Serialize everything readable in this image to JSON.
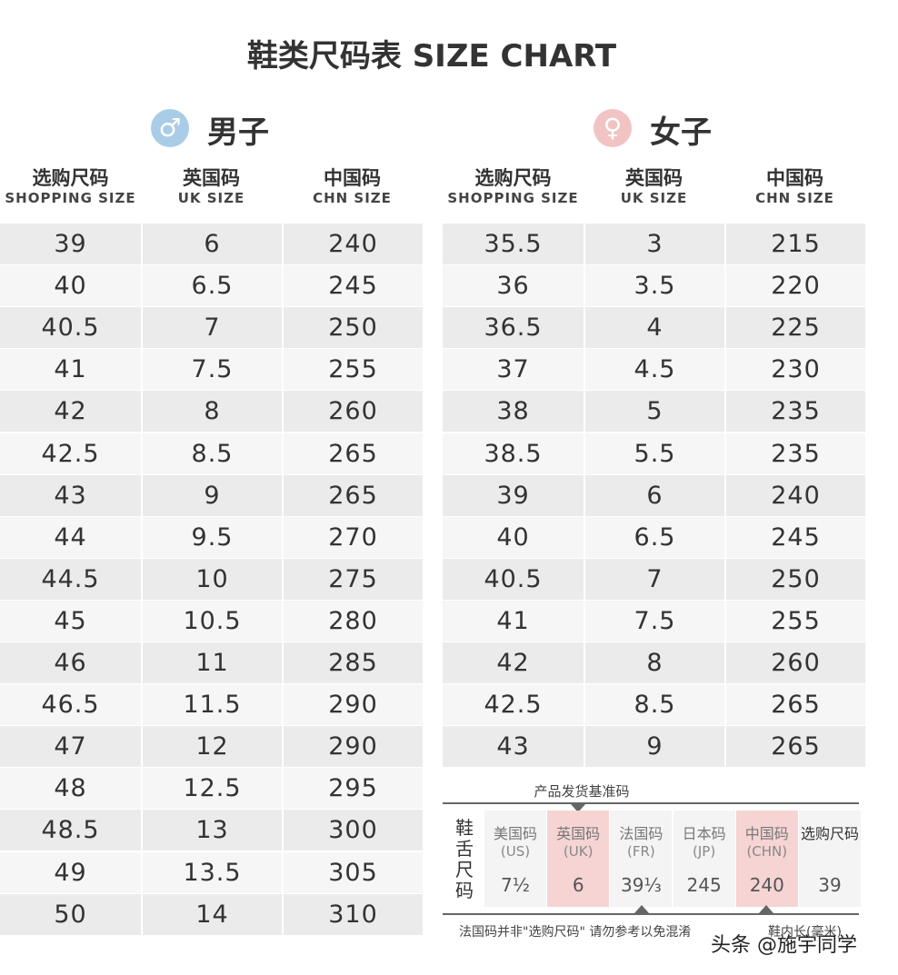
{
  "title": "鞋类尺码表 SIZE CHART",
  "men": {
    "icon": "♂",
    "label": "男子",
    "headers": [
      {
        "zh": "选购尺码",
        "en": "SHOPPING SIZE"
      },
      {
        "zh": "英国码",
        "en": "UK SIZE"
      },
      {
        "zh": "中国码",
        "en": "CHN SIZE"
      }
    ],
    "rows": [
      [
        39,
        6,
        240
      ],
      [
        40,
        6.5,
        245
      ],
      [
        40.5,
        7,
        250
      ],
      [
        41,
        7.5,
        255
      ],
      [
        42,
        8,
        260
      ],
      [
        42.5,
        8.5,
        265
      ],
      [
        43,
        9,
        265
      ],
      [
        44,
        9.5,
        270
      ],
      [
        44.5,
        10,
        275
      ],
      [
        45,
        10.5,
        280
      ],
      [
        46,
        11,
        285
      ],
      [
        46.5,
        11.5,
        290
      ],
      [
        47,
        12,
        290
      ],
      [
        48,
        12.5,
        295
      ],
      [
        48.5,
        13,
        300
      ],
      [
        49,
        13.5,
        305
      ],
      [
        50,
        14,
        310
      ]
    ]
  },
  "women": {
    "icon": "♀",
    "label": "女子",
    "headers": [
      {
        "zh": "选购尺码",
        "en": "SHOPPING SIZE"
      },
      {
        "zh": "英国码",
        "en": "UK SIZE"
      },
      {
        "zh": "中国码",
        "en": "CHN SIZE"
      }
    ],
    "rows": [
      [
        35.5,
        3,
        215
      ],
      [
        36,
        3.5,
        220
      ],
      [
        36.5,
        4,
        225
      ],
      [
        37,
        4.5,
        230
      ],
      [
        38,
        5,
        235
      ],
      [
        38.5,
        5.5,
        235
      ],
      [
        39,
        6,
        240
      ],
      [
        40,
        6.5,
        245
      ],
      [
        40.5,
        7,
        250
      ],
      [
        41,
        7.5,
        255
      ],
      [
        42,
        8,
        260
      ],
      [
        42.5,
        8.5,
        265
      ],
      [
        43,
        9,
        265
      ]
    ]
  },
  "reference": {
    "caption": "产品发货基准码",
    "side_label": "鞋舌尺码",
    "columns": [
      {
        "name": "美国码",
        "sub": "(US)",
        "value": "7½"
      },
      {
        "name": "英国码",
        "sub": "(UK)",
        "value": 6
      },
      {
        "name": "法国码",
        "sub": "(FR)",
        "value": "39⅓"
      },
      {
        "name": "日本码",
        "sub": "(JP)",
        "value": 245
      },
      {
        "name": "中国码",
        "sub": "(CHN)",
        "value": 240
      },
      {
        "name": "选购尺码",
        "value": 39
      }
    ],
    "note": "法国码并非\"选购尺码\" 请勿参考以免混淆",
    "note2": "鞋内长(毫米)"
  },
  "watermark": "头条 @施宇同学"
}
